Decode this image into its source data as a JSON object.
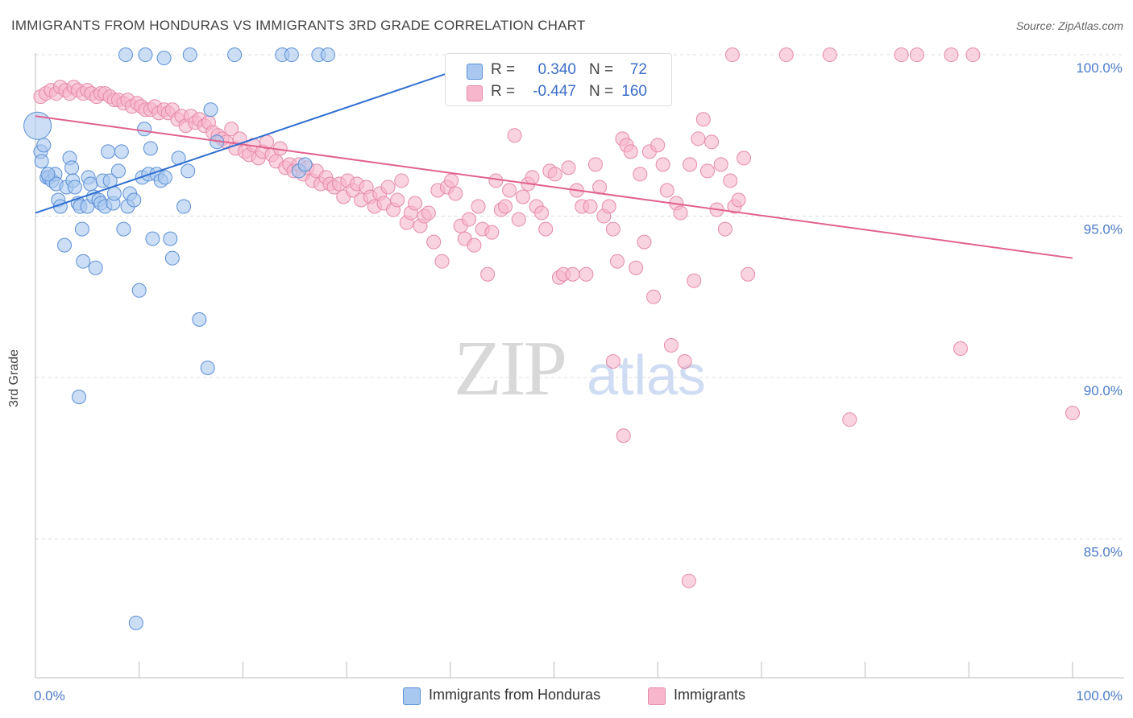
{
  "title": "IMMIGRANTS FROM HONDURAS VS IMMIGRANTS 3RD GRADE CORRELATION CHART",
  "source": "Source: ZipAtlas.com",
  "watermark": {
    "zip": "ZIP",
    "atlas": "atlas"
  },
  "legend": {
    "series1": {
      "r_label": "R =",
      "r_value": "0.340",
      "n_label": "N =",
      "n_value": "72",
      "color": "#a8c8f0"
    },
    "series2": {
      "r_label": "R =",
      "r_value": "-0.447",
      "n_label": "N =",
      "n_value": "160",
      "color": "#f7b6cb"
    }
  },
  "bottom_legend": {
    "series1": "Immigrants from Honduras",
    "series2": "Immigrants"
  },
  "chart_data": {
    "type": "scatter",
    "title": "IMMIGRANTS FROM HONDURAS VS IMMIGRANTS 3RD GRADE CORRELATION CHART",
    "xlabel": "",
    "ylabel": "3rd Grade",
    "xlim": [
      0,
      100
    ],
    "ylim": [
      80.7,
      100.5
    ],
    "x_tick_labels": [
      "0.0%",
      "100.0%"
    ],
    "y_ticks": [
      {
        "value": 100,
        "label": "100.0%"
      },
      {
        "value": 95,
        "label": "95.0%"
      },
      {
        "value": 90,
        "label": "90.0%"
      },
      {
        "value": 85,
        "label": "85.0%"
      }
    ],
    "series": [
      {
        "name": "Immigrants from Honduras",
        "fill": "#a8c8f0",
        "stroke": "#5b8fd6",
        "line_color": "#2f6fd0",
        "trend": {
          "x": [
            0,
            45
          ],
          "y": [
            95.1,
            100.0
          ]
        },
        "points": [
          [
            0.2,
            97.8
          ],
          [
            0.5,
            97.0
          ],
          [
            0.6,
            96.7
          ],
          [
            0.8,
            97.2
          ],
          [
            1.1,
            96.2
          ],
          [
            1.3,
            96.2
          ],
          [
            1.6,
            96.1
          ],
          [
            1.9,
            96.3
          ],
          [
            2.0,
            96.0
          ],
          [
            2.2,
            95.5
          ],
          [
            2.4,
            95.3
          ],
          [
            2.8,
            94.1
          ],
          [
            3.0,
            95.9
          ],
          [
            3.3,
            96.8
          ],
          [
            3.5,
            96.5
          ],
          [
            3.6,
            96.1
          ],
          [
            4.1,
            95.4
          ],
          [
            4.3,
            95.3
          ],
          [
            4.5,
            94.6
          ],
          [
            4.6,
            93.6
          ],
          [
            5.0,
            95.3
          ],
          [
            5.1,
            96.2
          ],
          [
            5.3,
            96.0
          ],
          [
            5.6,
            95.6
          ],
          [
            5.8,
            93.4
          ],
          [
            6.1,
            95.5
          ],
          [
            6.3,
            95.4
          ],
          [
            6.5,
            96.1
          ],
          [
            6.7,
            95.3
          ],
          [
            7.0,
            97.0
          ],
          [
            7.2,
            96.1
          ],
          [
            7.5,
            95.4
          ],
          [
            7.6,
            95.7
          ],
          [
            8.0,
            96.4
          ],
          [
            8.3,
            97.0
          ],
          [
            8.5,
            94.6
          ],
          [
            8.9,
            95.3
          ],
          [
            9.1,
            95.7
          ],
          [
            9.5,
            95.5
          ],
          [
            9.7,
            82.4
          ],
          [
            10.0,
            92.7
          ],
          [
            10.3,
            96.2
          ],
          [
            10.5,
            97.7
          ],
          [
            10.9,
            96.3
          ],
          [
            11.1,
            97.1
          ],
          [
            11.3,
            94.3
          ],
          [
            11.7,
            96.3
          ],
          [
            12.1,
            96.1
          ],
          [
            12.5,
            96.2
          ],
          [
            13.0,
            94.3
          ],
          [
            13.2,
            93.7
          ],
          [
            13.8,
            96.8
          ],
          [
            14.3,
            95.3
          ],
          [
            14.7,
            96.4
          ],
          [
            15.8,
            91.8
          ],
          [
            16.6,
            90.3
          ],
          [
            16.9,
            98.3
          ],
          [
            17.5,
            97.3
          ],
          [
            8.7,
            100.0
          ],
          [
            10.6,
            100.0
          ],
          [
            12.4,
            99.9
          ],
          [
            14.9,
            100.0
          ],
          [
            19.2,
            100.0
          ],
          [
            23.8,
            100.0
          ],
          [
            24.7,
            100.0
          ],
          [
            27.3,
            100.0
          ],
          [
            28.2,
            100.0
          ],
          [
            25.4,
            96.4
          ],
          [
            26.0,
            96.6
          ],
          [
            4.2,
            89.4
          ],
          [
            1.2,
            96.3
          ],
          [
            3.8,
            95.9
          ]
        ]
      },
      {
        "name": "Immigrants",
        "fill": "#f7b6cb",
        "stroke": "#e58aa8",
        "line_color": "#e0628e",
        "trend": {
          "x": [
            0,
            100
          ],
          "y": [
            98.1,
            93.7
          ]
        },
        "points": [
          [
            0.5,
            98.7
          ],
          [
            1.0,
            98.8
          ],
          [
            1.5,
            98.9
          ],
          [
            2.0,
            98.8
          ],
          [
            2.4,
            99.0
          ],
          [
            2.9,
            98.9
          ],
          [
            3.3,
            98.8
          ],
          [
            3.7,
            99.0
          ],
          [
            4.1,
            98.9
          ],
          [
            4.6,
            98.8
          ],
          [
            5.0,
            98.9
          ],
          [
            5.4,
            98.8
          ],
          [
            5.9,
            98.7
          ],
          [
            6.3,
            98.8
          ],
          [
            6.7,
            98.8
          ],
          [
            7.2,
            98.7
          ],
          [
            7.6,
            98.6
          ],
          [
            8.0,
            98.6
          ],
          [
            8.5,
            98.5
          ],
          [
            8.9,
            98.6
          ],
          [
            9.3,
            98.4
          ],
          [
            9.8,
            98.5
          ],
          [
            10.2,
            98.4
          ],
          [
            10.6,
            98.3
          ],
          [
            11.1,
            98.3
          ],
          [
            11.5,
            98.4
          ],
          [
            11.9,
            98.2
          ],
          [
            12.4,
            98.3
          ],
          [
            12.8,
            98.2
          ],
          [
            13.2,
            98.3
          ],
          [
            13.7,
            98.0
          ],
          [
            14.1,
            98.1
          ],
          [
            14.5,
            97.8
          ],
          [
            15.0,
            98.1
          ],
          [
            15.4,
            97.9
          ],
          [
            15.8,
            98.0
          ],
          [
            16.3,
            97.8
          ],
          [
            16.7,
            97.9
          ],
          [
            17.1,
            97.6
          ],
          [
            17.6,
            97.5
          ],
          [
            18.0,
            97.4
          ],
          [
            18.4,
            97.3
          ],
          [
            18.9,
            97.7
          ],
          [
            19.3,
            97.1
          ],
          [
            19.7,
            97.4
          ],
          [
            20.2,
            97.0
          ],
          [
            20.6,
            96.9
          ],
          [
            21.0,
            97.2
          ],
          [
            21.5,
            96.8
          ],
          [
            21.9,
            97.0
          ],
          [
            22.3,
            97.3
          ],
          [
            22.8,
            96.9
          ],
          [
            23.2,
            96.7
          ],
          [
            23.6,
            97.1
          ],
          [
            24.1,
            96.5
          ],
          [
            24.5,
            96.6
          ],
          [
            24.9,
            96.4
          ],
          [
            25.4,
            96.6
          ],
          [
            25.8,
            96.3
          ],
          [
            26.2,
            96.5
          ],
          [
            26.7,
            96.1
          ],
          [
            27.1,
            96.4
          ],
          [
            27.5,
            96.0
          ],
          [
            28.0,
            96.2
          ],
          [
            28.4,
            96.0
          ],
          [
            28.8,
            95.9
          ],
          [
            29.3,
            96.0
          ],
          [
            29.7,
            95.6
          ],
          [
            30.1,
            96.1
          ],
          [
            30.6,
            95.8
          ],
          [
            31.0,
            96.0
          ],
          [
            31.4,
            95.5
          ],
          [
            31.9,
            95.9
          ],
          [
            32.3,
            95.6
          ],
          [
            32.7,
            95.3
          ],
          [
            33.2,
            95.7
          ],
          [
            33.6,
            95.4
          ],
          [
            34.0,
            95.9
          ],
          [
            34.5,
            95.2
          ],
          [
            34.9,
            95.5
          ],
          [
            35.3,
            96.1
          ],
          [
            35.8,
            94.8
          ],
          [
            36.2,
            95.1
          ],
          [
            36.6,
            95.4
          ],
          [
            37.1,
            94.7
          ],
          [
            37.5,
            95.0
          ],
          [
            37.9,
            95.1
          ],
          [
            38.4,
            94.2
          ],
          [
            38.8,
            95.8
          ],
          [
            39.2,
            93.6
          ],
          [
            39.7,
            95.9
          ],
          [
            40.1,
            96.1
          ],
          [
            40.5,
            95.7
          ],
          [
            41.0,
            94.7
          ],
          [
            41.4,
            94.3
          ],
          [
            41.8,
            94.9
          ],
          [
            42.3,
            94.1
          ],
          [
            42.7,
            95.3
          ],
          [
            43.1,
            94.6
          ],
          [
            43.6,
            93.2
          ],
          [
            44.0,
            94.5
          ],
          [
            44.4,
            96.1
          ],
          [
            44.9,
            95.2
          ],
          [
            45.3,
            95.3
          ],
          [
            45.7,
            95.8
          ],
          [
            46.2,
            97.5
          ],
          [
            46.6,
            94.9
          ],
          [
            47.0,
            95.6
          ],
          [
            47.5,
            96.0
          ],
          [
            47.9,
            96.2
          ],
          [
            48.3,
            95.3
          ],
          [
            48.8,
            95.1
          ],
          [
            49.2,
            94.6
          ],
          [
            49.6,
            96.4
          ],
          [
            50.1,
            96.3
          ],
          [
            50.5,
            93.1
          ],
          [
            50.9,
            93.2
          ],
          [
            51.4,
            96.5
          ],
          [
            51.8,
            93.2
          ],
          [
            52.2,
            95.8
          ],
          [
            52.7,
            95.3
          ],
          [
            53.1,
            93.2
          ],
          [
            53.5,
            95.3
          ],
          [
            54.0,
            96.6
          ],
          [
            54.4,
            95.9
          ],
          [
            54.8,
            95.0
          ],
          [
            55.3,
            95.3
          ],
          [
            55.7,
            94.6
          ],
          [
            56.1,
            93.6
          ],
          [
            56.6,
            97.4
          ],
          [
            57.0,
            97.2
          ],
          [
            57.4,
            97.0
          ],
          [
            57.9,
            93.4
          ],
          [
            58.3,
            96.3
          ],
          [
            58.7,
            94.2
          ],
          [
            59.2,
            97.0
          ],
          [
            59.6,
            92.5
          ],
          [
            60.0,
            97.2
          ],
          [
            60.5,
            96.6
          ],
          [
            60.9,
            95.8
          ],
          [
            61.3,
            91.0
          ],
          [
            61.8,
            95.4
          ],
          [
            62.2,
            95.1
          ],
          [
            62.6,
            90.5
          ],
          [
            63.1,
            96.6
          ],
          [
            63.5,
            93.0
          ],
          [
            63.9,
            97.4
          ],
          [
            64.4,
            98.0
          ],
          [
            64.8,
            96.4
          ],
          [
            65.2,
            97.3
          ],
          [
            65.7,
            95.2
          ],
          [
            66.1,
            96.6
          ],
          [
            66.5,
            94.6
          ],
          [
            67.0,
            96.1
          ],
          [
            67.4,
            95.3
          ],
          [
            67.8,
            95.5
          ],
          [
            68.3,
            96.8
          ],
          [
            68.7,
            93.2
          ],
          [
            72.4,
            100.0
          ],
          [
            67.2,
            100.0
          ],
          [
            85.0,
            100.0
          ],
          [
            76.6,
            100.0
          ],
          [
            83.5,
            100.0
          ],
          [
            90.4,
            100.0
          ],
          [
            88.3,
            100.0
          ],
          [
            56.7,
            88.2
          ],
          [
            55.7,
            90.5
          ],
          [
            63.0,
            83.7
          ],
          [
            78.5,
            88.7
          ],
          [
            89.2,
            90.9
          ],
          [
            100.0,
            88.9
          ]
        ]
      }
    ]
  }
}
